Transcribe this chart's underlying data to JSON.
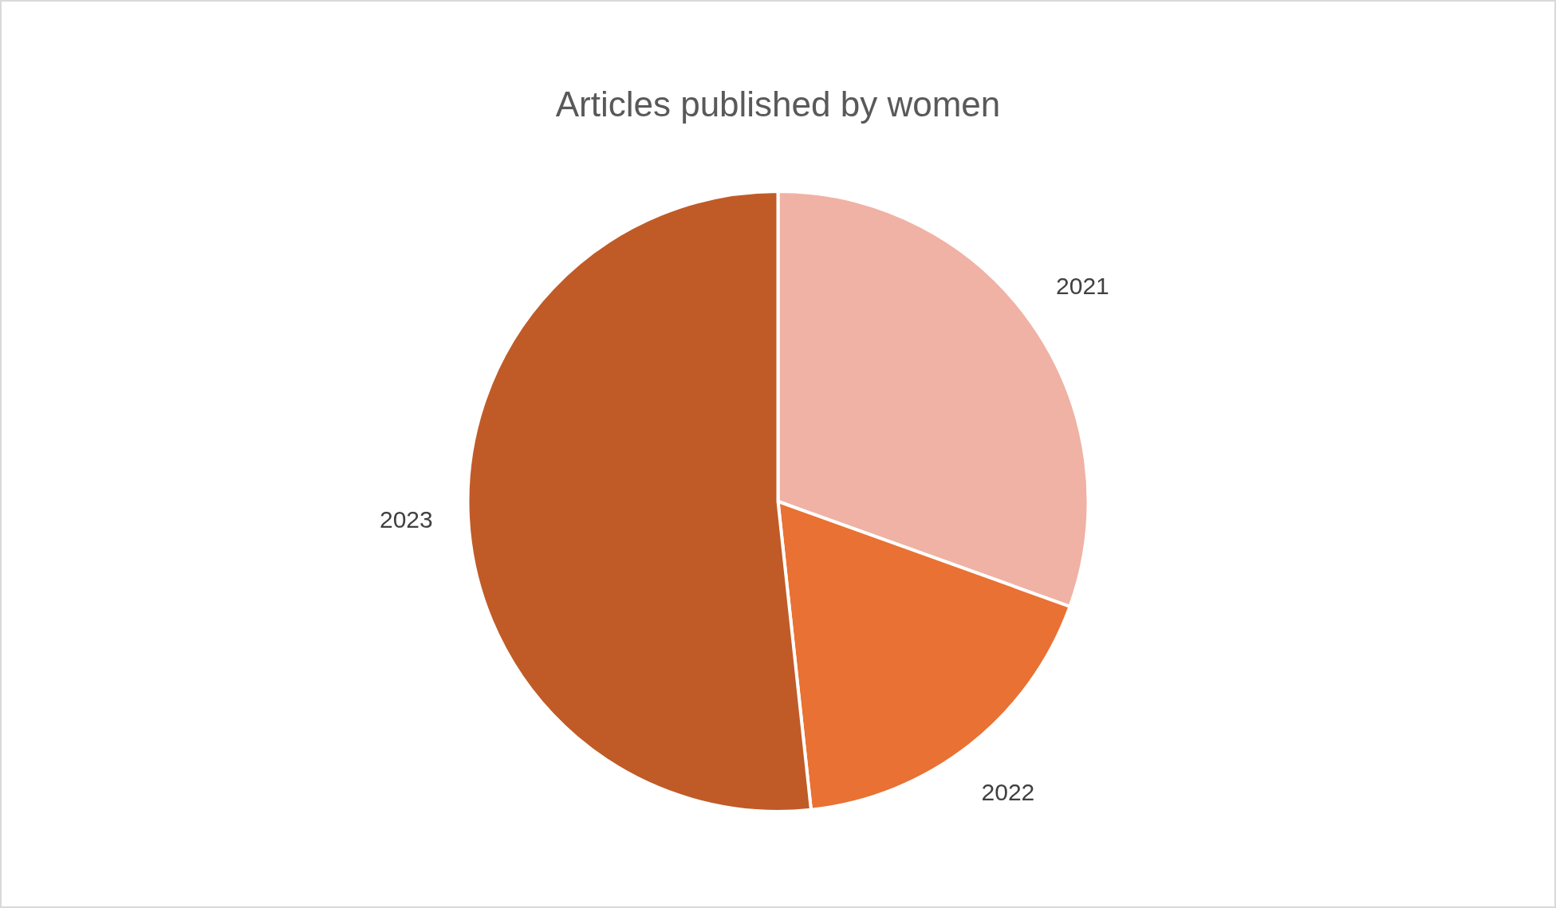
{
  "chart_data": {
    "type": "pie",
    "title": "Articles published by women",
    "categories": [
      "2021",
      "2022",
      "2023"
    ],
    "values": [
      30.5,
      17.8,
      51.7
    ],
    "colors": [
      "#f0b2a4",
      "#e87133",
      "#c05b27"
    ]
  }
}
